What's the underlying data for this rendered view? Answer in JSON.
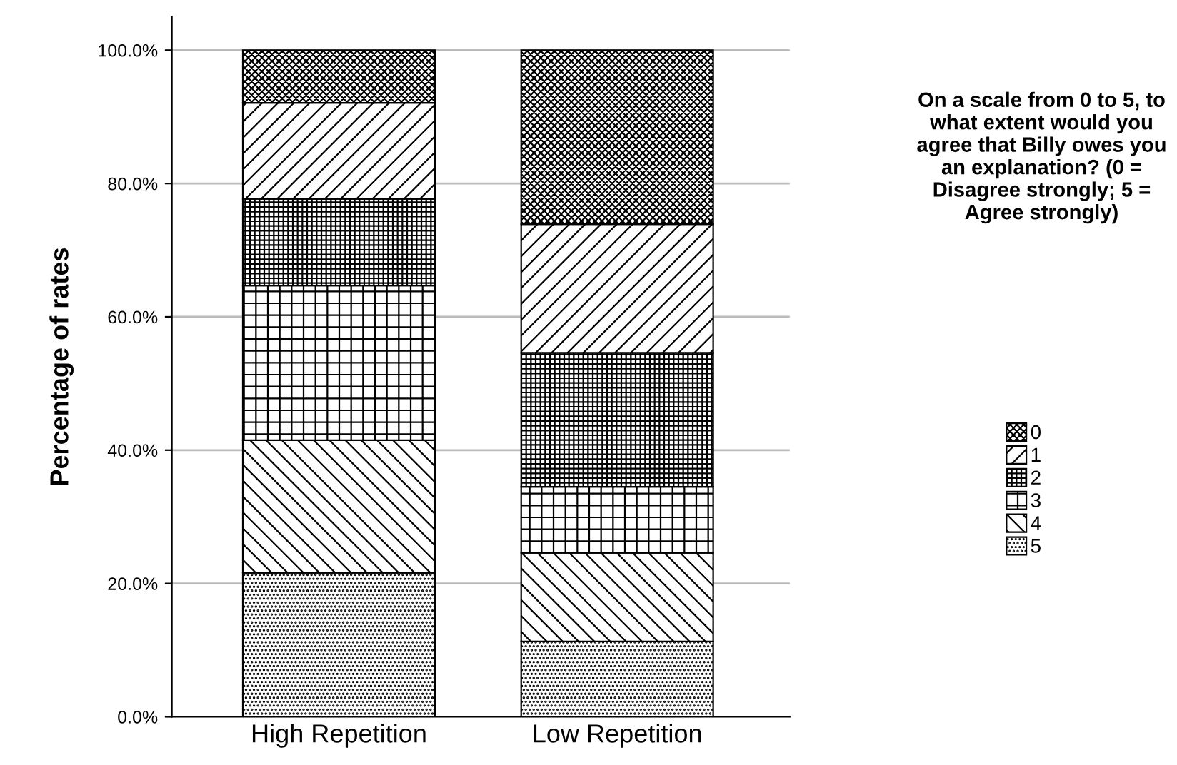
{
  "chart_data": {
    "type": "bar",
    "stacked": true,
    "ylabel": "Percentage of rates",
    "legend_title": "On a scale from 0 to 5, to what extent would you agree that Billy owes you an explanation? (0 = Disagree strongly; 5 = Agree strongly)",
    "categories": [
      "High Repetition",
      "Low Repetition"
    ],
    "series": [
      {
        "name": "5",
        "color": "#000000",
        "values": [
          21.6,
          11.3
        ]
      },
      {
        "name": "4",
        "color": "#000000",
        "values": [
          19.9,
          13.3
        ]
      },
      {
        "name": "3",
        "color": "#000000",
        "values": [
          23.2,
          9.9
        ]
      },
      {
        "name": "2",
        "color": "#000000",
        "values": [
          13.0,
          20.1
        ]
      },
      {
        "name": "1",
        "color": "#000000",
        "values": [
          14.4,
          19.3
        ]
      },
      {
        "name": "0",
        "color": "#000000",
        "values": [
          7.9,
          26.1
        ]
      }
    ],
    "ylim": [
      0,
      105
    ],
    "yticks": [
      {
        "value": 0,
        "label": "0.0%"
      },
      {
        "value": 20,
        "label": "20.0%"
      },
      {
        "value": 40,
        "label": "40.0%"
      },
      {
        "value": 60,
        "label": "60.0%"
      },
      {
        "value": 80,
        "label": "80.0%"
      },
      {
        "value": 100,
        "label": "100.0%"
      }
    ],
    "grid": "y",
    "legend": "right"
  }
}
